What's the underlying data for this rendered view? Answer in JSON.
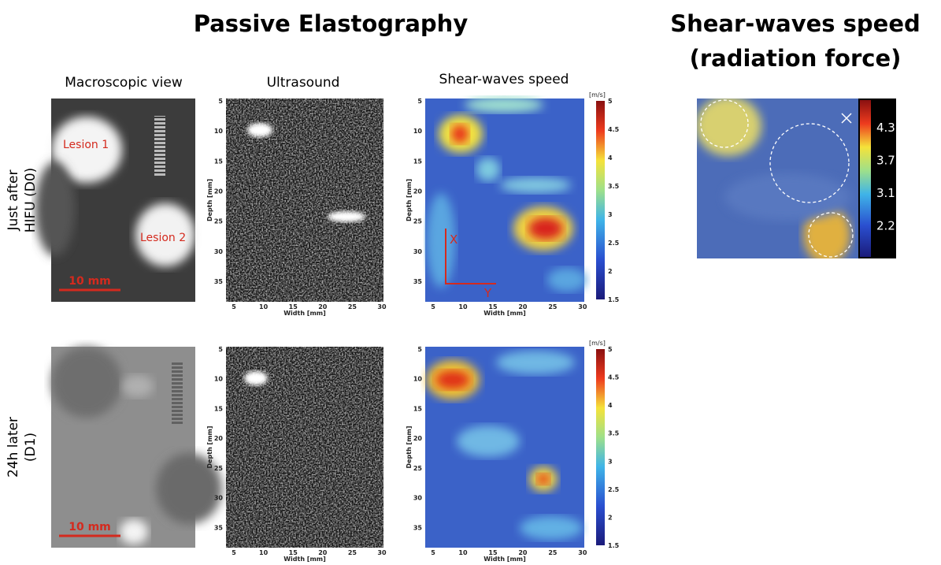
{
  "title": "Passive Elastography",
  "right_title": [
    "Shear-waves speed",
    "(radiation force)"
  ],
  "column_headers": [
    "Macroscopic view",
    "Ultrasound",
    "Shear-waves speed"
  ],
  "rows": [
    {
      "label": [
        "Just after",
        "HIFU (D0)"
      ],
      "lesion_labels": [
        "Lesion 1",
        "Lesion 2"
      ],
      "scale_bar": "10 mm",
      "annotations": [
        "X",
        "Y"
      ]
    },
    {
      "label": [
        "24h later",
        "(D1)"
      ],
      "scale_bar": "10 mm"
    }
  ],
  "axes": {
    "depth_label": "Depth [mm]",
    "width_label": "Width [mm]",
    "depth_ticks": [
      5,
      10,
      15,
      20,
      25,
      30,
      35
    ],
    "width_ticks": [
      5,
      10,
      15,
      20,
      25,
      30
    ],
    "colorbar_unit": "[m/s]",
    "colorbar_ticks": [
      1.5,
      2,
      2.5,
      3,
      3.5,
      4,
      4.5,
      5
    ]
  },
  "radiation_force_colorbar_ticks": [
    4.3,
    3.7,
    3.1,
    2.2
  ]
}
